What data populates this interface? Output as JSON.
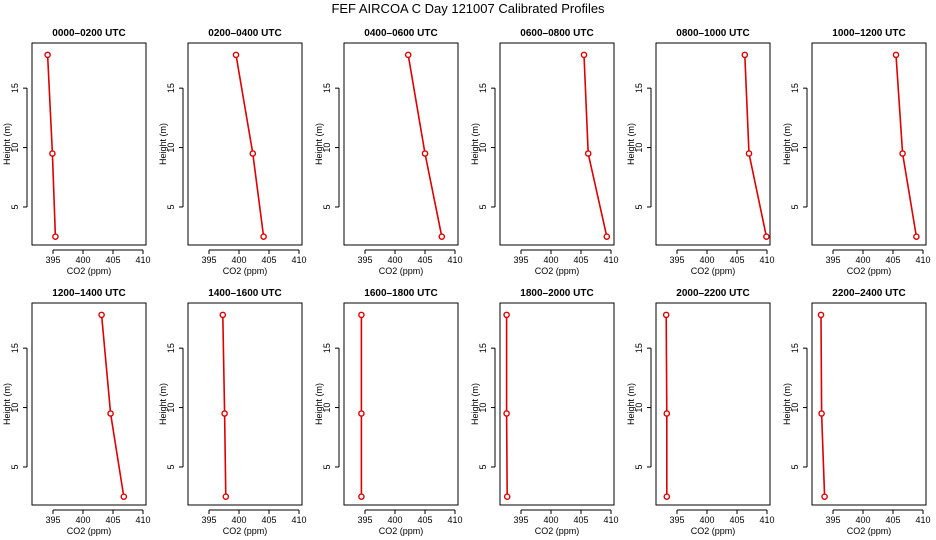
{
  "title": "FEF AIRCOA C  Day 121007  Calibrated Profiles",
  "chart_data": {
    "type": "line",
    "shared_axes": {
      "xlabel": "CO2 (ppm)",
      "ylabel": "Height (m)",
      "xlim": [
        391.5,
        410.5
      ],
      "ylim": [
        1.8,
        18.8
      ],
      "xticks": [
        395,
        400,
        405,
        410
      ],
      "yticks": [
        5,
        10,
        15
      ],
      "grid": false
    },
    "panels": [
      {
        "title": "0000–0200 UTC",
        "points": [
          {
            "x": 394.1,
            "y": 17.8
          },
          {
            "x": 394.9,
            "y": 9.5
          },
          {
            "x": 395.4,
            "y": 2.5
          }
        ]
      },
      {
        "title": "0200–0400 UTC",
        "points": [
          {
            "x": 399.5,
            "y": 17.8
          },
          {
            "x": 402.3,
            "y": 9.5
          },
          {
            "x": 404.1,
            "y": 2.5
          }
        ]
      },
      {
        "title": "0400–0600 UTC",
        "points": [
          {
            "x": 402.2,
            "y": 17.8
          },
          {
            "x": 405.0,
            "y": 9.5
          },
          {
            "x": 407.8,
            "y": 2.5
          }
        ]
      },
      {
        "title": "0600–0800 UTC",
        "points": [
          {
            "x": 405.5,
            "y": 17.8
          },
          {
            "x": 406.2,
            "y": 9.5
          },
          {
            "x": 409.3,
            "y": 2.5
          }
        ]
      },
      {
        "title": "0800–1000 UTC",
        "points": [
          {
            "x": 406.3,
            "y": 17.8
          },
          {
            "x": 407.0,
            "y": 9.5
          },
          {
            "x": 409.9,
            "y": 2.5
          }
        ]
      },
      {
        "title": "1000–1200 UTC",
        "points": [
          {
            "x": 405.5,
            "y": 17.8
          },
          {
            "x": 406.6,
            "y": 9.5
          },
          {
            "x": 408.9,
            "y": 2.5
          }
        ]
      },
      {
        "title": "1200–1400 UTC",
        "points": [
          {
            "x": 403.1,
            "y": 17.8
          },
          {
            "x": 404.6,
            "y": 9.5
          },
          {
            "x": 406.8,
            "y": 2.5
          }
        ]
      },
      {
        "title": "1400–1600 UTC",
        "points": [
          {
            "x": 397.3,
            "y": 17.8
          },
          {
            "x": 397.6,
            "y": 9.5
          },
          {
            "x": 397.8,
            "y": 2.5
          }
        ]
      },
      {
        "title": "1600–1800 UTC",
        "points": [
          {
            "x": 394.4,
            "y": 17.8
          },
          {
            "x": 394.4,
            "y": 9.5
          },
          {
            "x": 394.4,
            "y": 2.5
          }
        ]
      },
      {
        "title": "1800–2000 UTC",
        "points": [
          {
            "x": 392.6,
            "y": 17.8
          },
          {
            "x": 392.6,
            "y": 9.5
          },
          {
            "x": 392.7,
            "y": 2.5
          }
        ]
      },
      {
        "title": "2000–2200 UTC",
        "points": [
          {
            "x": 393.2,
            "y": 17.8
          },
          {
            "x": 393.3,
            "y": 9.5
          },
          {
            "x": 393.3,
            "y": 2.5
          }
        ]
      },
      {
        "title": "2200–2400 UTC",
        "points": [
          {
            "x": 393.0,
            "y": 17.8
          },
          {
            "x": 393.1,
            "y": 9.5
          },
          {
            "x": 393.6,
            "y": 2.5
          }
        ]
      }
    ]
  }
}
